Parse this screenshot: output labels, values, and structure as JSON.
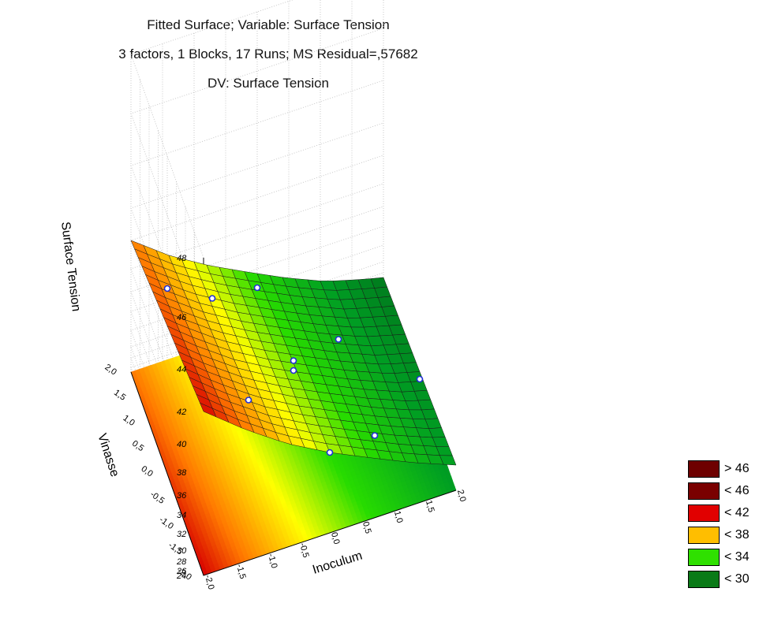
{
  "chart_data": {
    "type": "surface",
    "title": "Fitted Surface; Variable: Surface Tension",
    "subtitle": "3 factors, 1 Blocks, 17 Runs; MS Residual=,57682",
    "dv_label": "DV: Surface Tension",
    "xlabel": "Inoculum",
    "ylabel": "Vinasse",
    "zlabel": "Surface Tension",
    "x_ticks": [
      "-2,0",
      "-1,5",
      "-1,0",
      "-0,5",
      "0,0",
      "0,5",
      "1,0",
      "1,5",
      "2,0"
    ],
    "y_ticks": [
      "-2,0",
      "-1,5",
      "-1,0",
      "-0,5",
      "0,0",
      "0,5",
      "1,0",
      "1,5",
      "2,0"
    ],
    "z_ticks": [
      "24",
      "26",
      "28",
      "30",
      "32",
      "34",
      "36",
      "38",
      "40",
      "42",
      "44",
      "46",
      "48"
    ],
    "xlim": [
      -2,
      2
    ],
    "ylim": [
      -2,
      2
    ],
    "zlim": [
      24,
      48
    ],
    "surface_corners": {
      "x_min_y_min": 42,
      "x_max_y_min": 30,
      "x_min_y_max": 40,
      "x_max_y_max": 27
    },
    "observed_points": [
      {
        "x": -1,
        "y": -1,
        "z": 38
      },
      {
        "x": 1,
        "y": -1,
        "z": 30
      },
      {
        "x": -1,
        "y": 1,
        "z": 38
      },
      {
        "x": 1,
        "y": 1,
        "z": 29
      },
      {
        "x": 0,
        "y": 0,
        "z": 35
      },
      {
        "x": 0,
        "y": 0,
        "z": 34
      },
      {
        "x": 2,
        "y": 0,
        "z": 27
      },
      {
        "x": -2,
        "y": 0,
        "z": 43
      },
      {
        "x": 0,
        "y": 2,
        "z": 32
      },
      {
        "x": 0,
        "y": -2,
        "z": 36
      }
    ],
    "legend": {
      "entries": [
        {
          "label": "> 46",
          "color": "#6e0000"
        },
        {
          "label": "< 46",
          "color": "#7a0000"
        },
        {
          "label": "< 42",
          "color": "#e10000"
        },
        {
          "label": "< 38",
          "color": "#ffbe00"
        },
        {
          "label": "< 34",
          "color": "#2fe000"
        },
        {
          "label": "< 30",
          "color": "#0a7a17"
        }
      ]
    },
    "grid": true
  }
}
